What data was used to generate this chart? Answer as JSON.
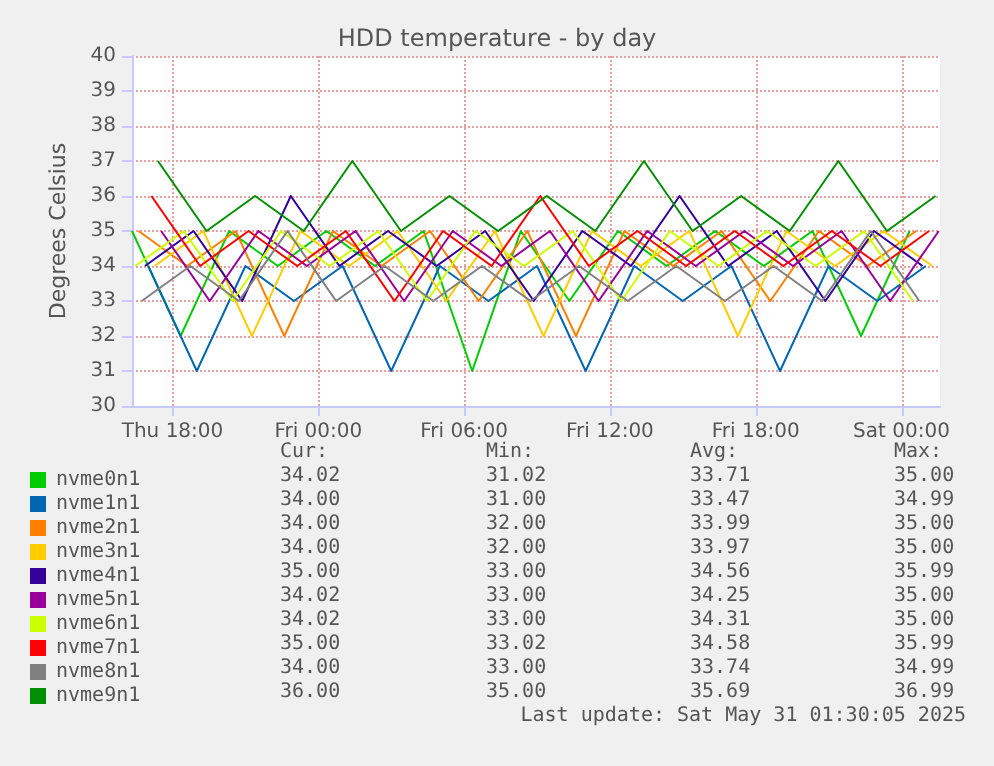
{
  "chart_data": {
    "type": "line",
    "title": "HDD temperature - by day",
    "ylabel": "Degrees Celsius",
    "xlim": [
      "2025-05-29T16:20",
      "2025-05-31T01:35"
    ],
    "xticks": [
      {
        "value": "2025-05-29T18:00",
        "label": "Thu 18:00"
      },
      {
        "value": "2025-05-30T00:00",
        "label": "Fri 00:00"
      },
      {
        "value": "2025-05-30T06:00",
        "label": "Fri 06:00"
      },
      {
        "value": "2025-05-30T12:00",
        "label": "Fri 12:00"
      },
      {
        "value": "2025-05-30T18:00",
        "label": "Fri 18:00"
      },
      {
        "value": "2025-05-31T00:00",
        "label": "Sat 00:00"
      }
    ],
    "ylim": [
      30,
      40
    ],
    "yticks": [
      30,
      31,
      32,
      33,
      34,
      35,
      36,
      37,
      38,
      39,
      40
    ],
    "grid": true,
    "legend": "bottom",
    "marker": "none",
    "line_style": "solid",
    "series": [
      {
        "name": "nvme0n1",
        "color": "#00cc00",
        "x": [
          "2025-05-29T16:20",
          "2025-05-29T18:20",
          "2025-05-29T20:20",
          "2025-05-29T22:20",
          "2025-05-30T00:20",
          "2025-05-30T02:20",
          "2025-05-30T04:20",
          "2025-05-30T06:20",
          "2025-05-30T08:20",
          "2025-05-30T10:20",
          "2025-05-30T12:20",
          "2025-05-30T14:20",
          "2025-05-30T16:20",
          "2025-05-30T18:20",
          "2025-05-30T20:20",
          "2025-05-30T22:20",
          "2025-05-31T00:20"
        ],
        "values": [
          35,
          32,
          35,
          34,
          35,
          34,
          35,
          31,
          35,
          33,
          35,
          34,
          35,
          34,
          35,
          32,
          35
        ]
      },
      {
        "name": "nvme1n1",
        "color": "#0066b3",
        "x": [
          "2025-05-29T17:00",
          "2025-05-29T19:00",
          "2025-05-29T21:00",
          "2025-05-29T23:00",
          "2025-05-30T01:00",
          "2025-05-30T03:00",
          "2025-05-30T05:00",
          "2025-05-30T07:00",
          "2025-05-30T09:00",
          "2025-05-30T11:00",
          "2025-05-30T13:00",
          "2025-05-30T15:00",
          "2025-05-30T17:00",
          "2025-05-30T19:00",
          "2025-05-30T21:00",
          "2025-05-30T23:00",
          "2025-05-31T01:00"
        ],
        "values": [
          34,
          31,
          34,
          33,
          34,
          31,
          34,
          33,
          34,
          31,
          34,
          33,
          34,
          31,
          34,
          33,
          34
        ]
      },
      {
        "name": "nvme2n1",
        "color": "#ff8000",
        "x": [
          "2025-05-29T16:36",
          "2025-05-29T18:36",
          "2025-05-29T20:36",
          "2025-05-29T22:36",
          "2025-05-30T00:36",
          "2025-05-30T02:36",
          "2025-05-30T04:36",
          "2025-05-30T06:36",
          "2025-05-30T08:36",
          "2025-05-30T10:36",
          "2025-05-30T12:36",
          "2025-05-30T14:36",
          "2025-05-30T16:36",
          "2025-05-30T18:36",
          "2025-05-30T20:36",
          "2025-05-30T22:36",
          "2025-05-31T00:36"
        ],
        "values": [
          35,
          34,
          35,
          32,
          35,
          34,
          35,
          33,
          35,
          32,
          35,
          34,
          35,
          33,
          35,
          34,
          35
        ]
      },
      {
        "name": "nvme3n1",
        "color": "#ffcc00",
        "x": [
          "2025-05-29T17:16",
          "2025-05-29T19:16",
          "2025-05-29T21:16",
          "2025-05-29T23:16",
          "2025-05-30T01:16",
          "2025-05-30T03:16",
          "2025-05-30T05:16",
          "2025-05-30T07:16",
          "2025-05-30T09:16",
          "2025-05-30T11:16",
          "2025-05-30T13:16",
          "2025-05-30T15:16",
          "2025-05-30T17:16",
          "2025-05-30T19:16",
          "2025-05-30T21:16",
          "2025-05-30T23:16",
          "2025-05-31T01:16"
        ],
        "values": [
          34,
          35,
          32,
          35,
          34,
          35,
          33,
          35,
          32,
          35,
          34,
          35,
          32,
          35,
          34,
          35,
          34
        ]
      },
      {
        "name": "nvme4n1",
        "color": "#330099",
        "x": [
          "2025-05-29T16:52",
          "2025-05-29T18:52",
          "2025-05-29T20:52",
          "2025-05-29T22:52",
          "2025-05-30T00:52",
          "2025-05-30T02:52",
          "2025-05-30T04:52",
          "2025-05-30T06:52",
          "2025-05-30T08:52",
          "2025-05-30T10:52",
          "2025-05-30T12:52",
          "2025-05-30T14:52",
          "2025-05-30T16:52",
          "2025-05-30T18:52",
          "2025-05-30T20:52",
          "2025-05-30T22:52",
          "2025-05-31T00:52"
        ],
        "values": [
          34,
          35,
          33,
          36,
          34,
          35,
          34,
          35,
          33,
          35,
          34,
          36,
          34,
          35,
          33,
          35,
          34
        ]
      },
      {
        "name": "nvme5n1",
        "color": "#990099",
        "x": [
          "2025-05-29T17:32",
          "2025-05-29T19:32",
          "2025-05-29T21:32",
          "2025-05-29T23:32",
          "2025-05-30T01:32",
          "2025-05-30T03:32",
          "2025-05-30T05:32",
          "2025-05-30T07:32",
          "2025-05-30T09:32",
          "2025-05-30T11:32",
          "2025-05-30T13:32",
          "2025-05-30T15:32",
          "2025-05-30T17:32",
          "2025-05-30T19:32",
          "2025-05-30T21:32",
          "2025-05-30T23:32",
          "2025-05-31T01:32"
        ],
        "values": [
          35,
          33,
          35,
          34,
          35,
          33,
          35,
          34,
          35,
          33,
          35,
          34,
          35,
          34,
          35,
          33,
          35
        ]
      },
      {
        "name": "nvme6n1",
        "color": "#ccff00",
        "x": [
          "2025-05-29T16:28",
          "2025-05-29T18:28",
          "2025-05-29T20:28",
          "2025-05-29T22:28",
          "2025-05-30T00:28",
          "2025-05-30T02:28",
          "2025-05-30T04:28",
          "2025-05-30T06:28",
          "2025-05-30T08:28",
          "2025-05-30T10:28",
          "2025-05-30T12:28",
          "2025-05-30T14:28",
          "2025-05-30T16:28",
          "2025-05-30T18:28",
          "2025-05-30T20:28",
          "2025-05-30T22:28",
          "2025-05-31T00:28"
        ],
        "values": [
          34,
          35,
          33,
          35,
          34,
          35,
          33,
          35,
          34,
          35,
          33,
          35,
          34,
          35,
          34,
          35,
          33
        ]
      },
      {
        "name": "nvme7n1",
        "color": "#ff0000",
        "x": [
          "2025-05-29T17:08",
          "2025-05-29T19:08",
          "2025-05-29T21:08",
          "2025-05-29T23:08",
          "2025-05-30T01:08",
          "2025-05-30T03:08",
          "2025-05-30T05:08",
          "2025-05-30T07:08",
          "2025-05-30T09:08",
          "2025-05-30T11:08",
          "2025-05-30T13:08",
          "2025-05-30T15:08",
          "2025-05-30T17:08",
          "2025-05-30T19:08",
          "2025-05-30T21:08",
          "2025-05-30T23:08",
          "2025-05-31T01:08"
        ],
        "values": [
          36,
          34,
          35,
          34,
          35,
          33,
          35,
          34,
          36,
          34,
          35,
          34,
          35,
          34,
          35,
          34,
          35
        ]
      },
      {
        "name": "nvme8n1",
        "color": "#808080",
        "x": [
          "2025-05-29T16:44",
          "2025-05-29T18:44",
          "2025-05-29T20:44",
          "2025-05-29T22:44",
          "2025-05-30T00:44",
          "2025-05-30T02:44",
          "2025-05-30T04:44",
          "2025-05-30T06:44",
          "2025-05-30T08:44",
          "2025-05-30T10:44",
          "2025-05-30T12:44",
          "2025-05-30T14:44",
          "2025-05-30T16:44",
          "2025-05-30T18:44",
          "2025-05-30T20:44",
          "2025-05-30T22:44",
          "2025-05-31T00:44"
        ],
        "values": [
          33,
          34,
          33,
          35,
          33,
          34,
          33,
          34,
          33,
          34,
          33,
          34,
          33,
          34,
          33,
          35,
          33
        ]
      },
      {
        "name": "nvme9n1",
        "color": "#008f00",
        "x": [
          "2025-05-29T17:24",
          "2025-05-29T19:24",
          "2025-05-29T21:24",
          "2025-05-29T23:24",
          "2025-05-30T01:24",
          "2025-05-30T03:24",
          "2025-05-30T05:24",
          "2025-05-30T07:24",
          "2025-05-30T09:24",
          "2025-05-30T11:24",
          "2025-05-30T13:24",
          "2025-05-30T15:24",
          "2025-05-30T17:24",
          "2025-05-30T19:24",
          "2025-05-30T21:24",
          "2025-05-30T23:24",
          "2025-05-31T01:24"
        ],
        "values": [
          37,
          35,
          36,
          35,
          37,
          35,
          36,
          35,
          36,
          35,
          37,
          35,
          36,
          35,
          37,
          35,
          36
        ]
      }
    ],
    "annotations": [
      "Cur:",
      "Min:",
      "Avg:",
      "Max:",
      "34.02",
      "31.02",
      "33.71",
      "35.00",
      "34.00",
      "31.00",
      "33.47",
      "34.99",
      "34.00",
      "32.00",
      "33.99",
      "35.00",
      "34.00",
      "32.00",
      "33.97",
      "35.00",
      "35.00",
      "33.00",
      "34.56",
      "35.99",
      "34.02",
      "33.00",
      "34.25",
      "35.00",
      "34.02",
      "33.00",
      "34.31",
      "35.00",
      "35.00",
      "33.02",
      "34.58",
      "35.99",
      "34.00",
      "33.00",
      "33.74",
      "34.99",
      "36.00",
      "35.00",
      "35.69",
      "36.99",
      "Last update: Sat May 31 01:30:05 2025"
    ]
  }
}
